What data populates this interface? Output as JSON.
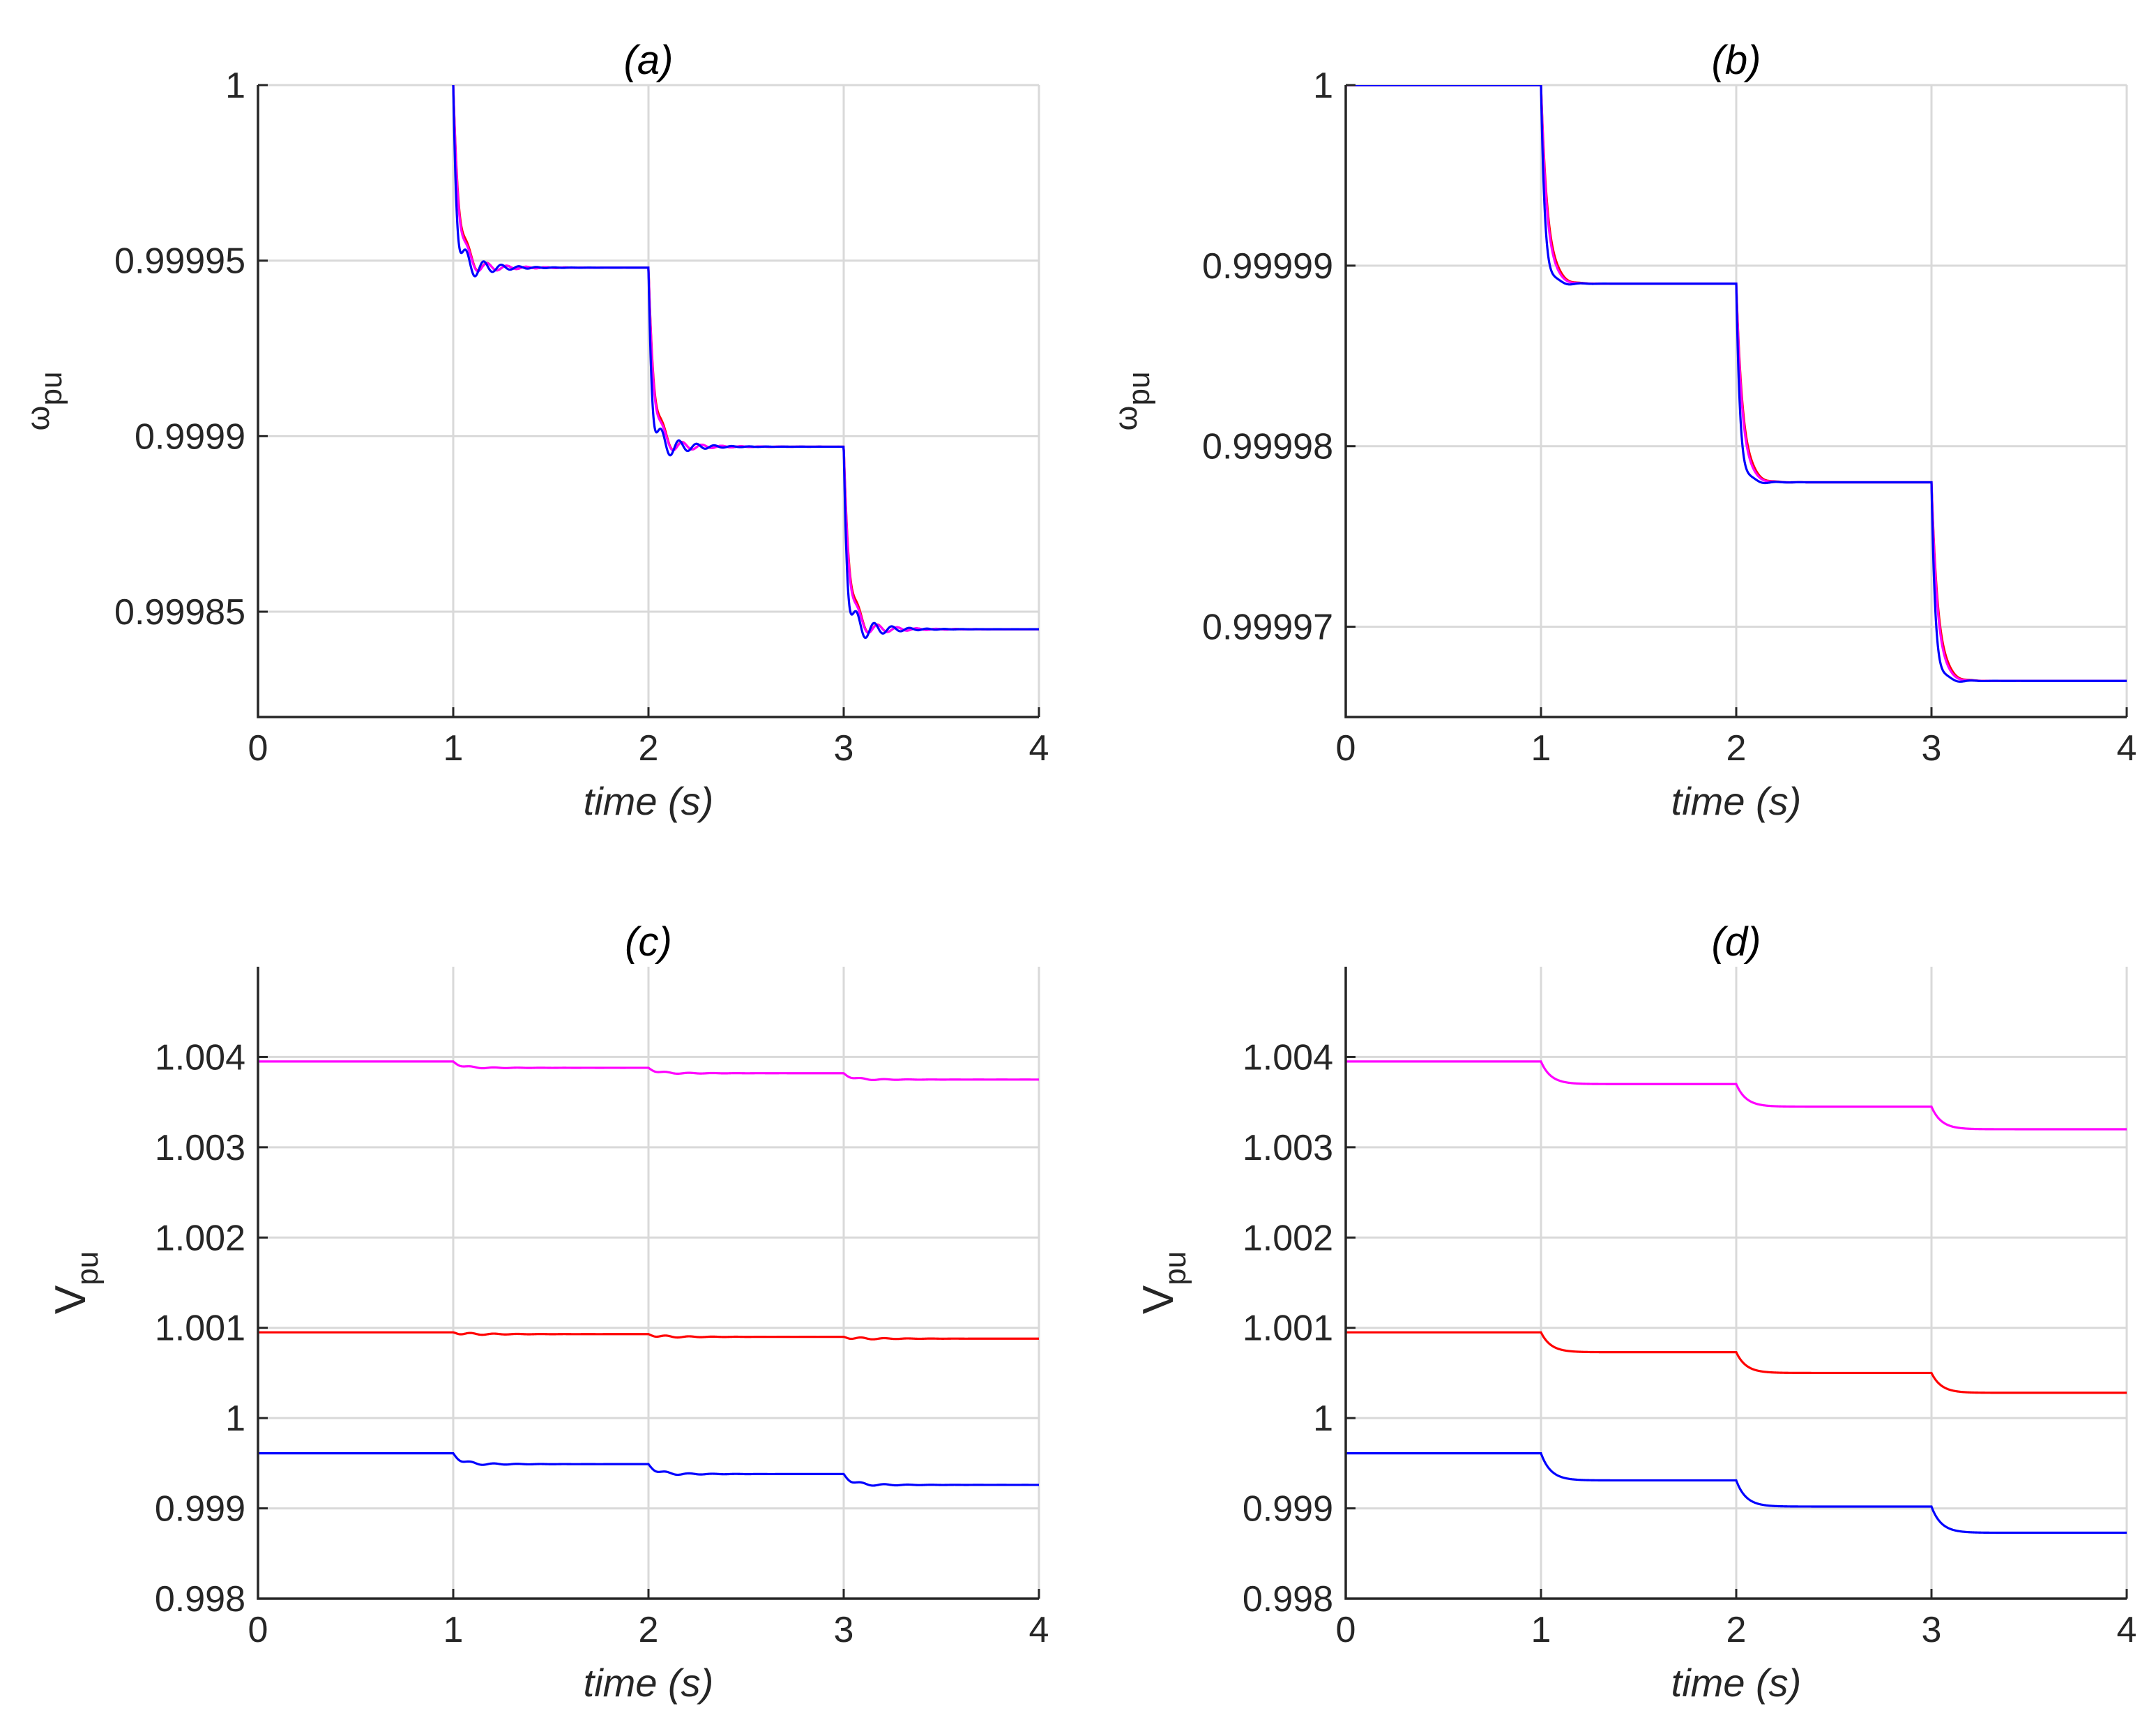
{
  "chart_data": [
    {
      "type": "line",
      "panel": "a",
      "title": "(a)",
      "xlabel": "time (s)",
      "ylabel": {
        "symbol": "ω",
        "subscript": "pu"
      },
      "xlim": [
        0,
        4
      ],
      "ylim": [
        0.99982,
        1.0
      ],
      "xticks": [
        0,
        1,
        2,
        3,
        4
      ],
      "xtick_labels": [
        "0",
        "1",
        "2",
        "3",
        "4"
      ],
      "yticks": [
        0.99985,
        0.9999,
        0.99995,
        1.0
      ],
      "ytick_labels": [
        "0.99985",
        "0.9999",
        "0.99995",
        "1"
      ],
      "grid": true,
      "series": [
        {
          "name": "red",
          "color": "#ff0000",
          "start_time": 1,
          "steps": [
            {
              "t": 1,
              "from": 1.0,
              "to": 0.999948
            },
            {
              "t": 2,
              "from": 0.999948,
              "to": 0.999897
            },
            {
              "t": 3,
              "from": 0.999897,
              "to": 0.999845
            }
          ],
          "settling": {
            "tau": 0.03,
            "osc_amp": 4.5e-06,
            "osc_period": 0.1,
            "osc_decay": 0.13
          }
        },
        {
          "name": "magenta",
          "color": "#ff00ff",
          "start_time": 1,
          "steps": [
            {
              "t": 1,
              "from": 1.0,
              "to": 0.999948
            },
            {
              "t": 2,
              "from": 0.999948,
              "to": 0.999897
            },
            {
              "t": 3,
              "from": 0.999897,
              "to": 0.999845
            }
          ],
          "settling": {
            "tau": 0.028,
            "osc_amp": 4e-06,
            "osc_period": 0.1,
            "osc_decay": 0.14
          }
        },
        {
          "name": "blue",
          "color": "#0000ff",
          "start_time": 1,
          "steps": [
            {
              "t": 1,
              "from": 1.0,
              "to": 0.999948
            },
            {
              "t": 2,
              "from": 0.999948,
              "to": 0.999897
            },
            {
              "t": 3,
              "from": 0.999897,
              "to": 0.999845
            }
          ],
          "settling": {
            "tau": 0.018,
            "osc_amp": 6.5e-06,
            "osc_period": 0.09,
            "osc_decay": 0.12
          }
        }
      ]
    },
    {
      "type": "line",
      "panel": "b",
      "title": "(b)",
      "xlabel": "time (s)",
      "ylabel": {
        "symbol": "ω",
        "subscript": "pu"
      },
      "xlim": [
        0,
        4
      ],
      "ylim": [
        0.999965,
        1.0
      ],
      "xticks": [
        0,
        1,
        2,
        3,
        4
      ],
      "xtick_labels": [
        "0",
        "1",
        "2",
        "3",
        "4"
      ],
      "yticks": [
        0.99997,
        0.99998,
        0.99999,
        1.0
      ],
      "ytick_labels": [
        "0.99997",
        "0.99998",
        "0.99999",
        "1"
      ],
      "grid": true,
      "series": [
        {
          "name": "red",
          "color": "#ff0000",
          "start_time": 0,
          "steps": [
            {
              "t": 1,
              "from": 1.0,
              "to": 0.999989
            },
            {
              "t": 2,
              "from": 0.999989,
              "to": 0.999978
            },
            {
              "t": 3,
              "from": 0.999978,
              "to": 0.999967
            }
          ],
          "settling": {
            "tau": 0.035,
            "osc_amp": 2e-07,
            "osc_period": 0.12,
            "osc_decay": 0.08
          }
        },
        {
          "name": "magenta",
          "color": "#ff00ff",
          "start_time": 0,
          "steps": [
            {
              "t": 1,
              "from": 1.0,
              "to": 0.999989
            },
            {
              "t": 2,
              "from": 0.999989,
              "to": 0.999978
            },
            {
              "t": 3,
              "from": 0.999978,
              "to": 0.999967
            }
          ],
          "settling": {
            "tau": 0.032,
            "osc_amp": 1.5e-07,
            "osc_period": 0.12,
            "osc_decay": 0.08
          }
        },
        {
          "name": "blue",
          "color": "#0000ff",
          "start_time": 0,
          "steps": [
            {
              "t": 1,
              "from": 1.0,
              "to": 0.999989
            },
            {
              "t": 2,
              "from": 0.999989,
              "to": 0.999978
            },
            {
              "t": 3,
              "from": 0.999978,
              "to": 0.999967
            }
          ],
          "settling": {
            "tau": 0.02,
            "osc_amp": 4e-07,
            "osc_period": 0.12,
            "osc_decay": 0.07
          }
        }
      ]
    },
    {
      "type": "line",
      "panel": "c",
      "title": "(c)",
      "xlabel": "time (s)",
      "ylabel": {
        "symbol": "V",
        "subscript": "pu"
      },
      "xlim": [
        0,
        4
      ],
      "ylim": [
        0.998,
        1.005
      ],
      "xticks": [
        0,
        1,
        2,
        3,
        4
      ],
      "xtick_labels": [
        "0",
        "1",
        "2",
        "3",
        "4"
      ],
      "yticks": [
        0.998,
        0.999,
        1.0,
        1.001,
        1.002,
        1.003,
        1.004
      ],
      "ytick_labels": [
        "0.998",
        "0.999",
        "1",
        "1.001",
        "1.002",
        "1.003",
        "1.004"
      ],
      "grid": true,
      "series": [
        {
          "name": "magenta",
          "color": "#ff00ff",
          "start_time": 0,
          "steps": [
            {
              "t": 1,
              "from": 1.00395,
              "to": 1.00388
            },
            {
              "t": 2,
              "from": 1.00388,
              "to": 1.00382
            },
            {
              "t": 3,
              "from": 1.00382,
              "to": 1.00375
            }
          ],
          "settling": {
            "tau": 0.04,
            "osc_amp": 1.8e-05,
            "osc_period": 0.12,
            "osc_decay": 0.15
          }
        },
        {
          "name": "red",
          "color": "#ff0000",
          "start_time": 0,
          "steps": [
            {
              "t": 1,
              "from": 1.00095,
              "to": 1.00093
            },
            {
              "t": 2,
              "from": 1.00093,
              "to": 1.0009
            },
            {
              "t": 3,
              "from": 1.0009,
              "to": 1.00088
            }
          ],
          "settling": {
            "tau": 0.04,
            "osc_amp": 2.2e-05,
            "osc_period": 0.12,
            "osc_decay": 0.15
          }
        },
        {
          "name": "blue",
          "color": "#0000ff",
          "start_time": 0,
          "steps": [
            {
              "t": 1,
              "from": 0.99961,
              "to": 0.99949
            },
            {
              "t": 2,
              "from": 0.99949,
              "to": 0.99938
            },
            {
              "t": 3,
              "from": 0.99938,
              "to": 0.99926
            }
          ],
          "settling": {
            "tau": 0.04,
            "osc_amp": 3e-05,
            "osc_period": 0.12,
            "osc_decay": 0.15
          }
        }
      ]
    },
    {
      "type": "line",
      "panel": "d",
      "title": "(d)",
      "xlabel": "time (s)",
      "ylabel": {
        "symbol": "V",
        "subscript": "pu"
      },
      "xlim": [
        0,
        4
      ],
      "ylim": [
        0.998,
        1.005
      ],
      "xticks": [
        0,
        1,
        2,
        3,
        4
      ],
      "xtick_labels": [
        "0",
        "1",
        "2",
        "3",
        "4"
      ],
      "yticks": [
        0.998,
        0.999,
        1.0,
        1.001,
        1.002,
        1.003,
        1.004
      ],
      "ytick_labels": [
        "0.998",
        "0.999",
        "1",
        "1.001",
        "1.002",
        "1.003",
        "1.004"
      ],
      "grid": true,
      "series": [
        {
          "name": "magenta",
          "color": "#ff00ff",
          "start_time": 0,
          "steps": [
            {
              "t": 1,
              "from": 1.00395,
              "to": 1.0037
            },
            {
              "t": 2,
              "from": 1.0037,
              "to": 1.00345
            },
            {
              "t": 3,
              "from": 1.00345,
              "to": 1.0032
            }
          ],
          "settling": {
            "tau": 0.05,
            "osc_amp": 0,
            "osc_period": 0.12,
            "osc_decay": 0.1
          }
        },
        {
          "name": "red",
          "color": "#ff0000",
          "start_time": 0,
          "steps": [
            {
              "t": 1,
              "from": 1.00095,
              "to": 1.00073
            },
            {
              "t": 2,
              "from": 1.00073,
              "to": 1.0005
            },
            {
              "t": 3,
              "from": 1.0005,
              "to": 1.00028
            }
          ],
          "settling": {
            "tau": 0.05,
            "osc_amp": 0,
            "osc_period": 0.12,
            "osc_decay": 0.1
          }
        },
        {
          "name": "blue",
          "color": "#0000ff",
          "start_time": 0,
          "steps": [
            {
              "t": 1,
              "from": 0.99961,
              "to": 0.99931
            },
            {
              "t": 2,
              "from": 0.99931,
              "to": 0.99902
            },
            {
              "t": 3,
              "from": 0.99902,
              "to": 0.99873
            }
          ],
          "settling": {
            "tau": 0.05,
            "osc_amp": 0,
            "osc_period": 0.12,
            "osc_decay": 0.1
          }
        }
      ]
    }
  ]
}
